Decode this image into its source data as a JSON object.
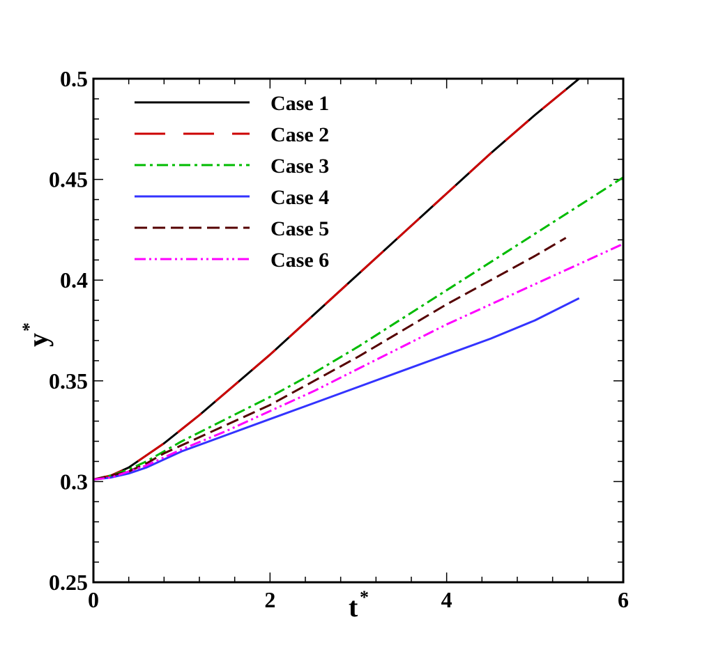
{
  "chart_data": {
    "type": "line",
    "title": "",
    "xlabel": "t",
    "xlabel_sup": "*",
    "ylabel": "y",
    "ylabel_sup": "*",
    "xlim": [
      0,
      6
    ],
    "ylim": [
      0.25,
      0.5
    ],
    "xticks": [
      0,
      2,
      4,
      6
    ],
    "xtick_labels": [
      "0",
      "2",
      "4",
      "6"
    ],
    "yticks": [
      0.25,
      0.3,
      0.35,
      0.4,
      0.45,
      0.5
    ],
    "ytick_labels": [
      "0.25",
      "0.3",
      "0.35",
      "0.4",
      "0.45",
      "0.5"
    ],
    "grid": false,
    "legend": {
      "position": "top-left"
    },
    "series": [
      {
        "name": "Case 1",
        "color": "#000000",
        "dash": "solid",
        "x": [
          0,
          0.2,
          0.4,
          0.6,
          0.8,
          1.0,
          1.2,
          1.6,
          2.0,
          2.5,
          3.0,
          3.5,
          4.0,
          4.5,
          5.0,
          5.5
        ],
        "y": [
          0.301,
          0.303,
          0.307,
          0.313,
          0.319,
          0.326,
          0.333,
          0.348,
          0.363,
          0.383,
          0.403,
          0.423,
          0.443,
          0.463,
          0.482,
          0.5
        ]
      },
      {
        "name": "Case 2",
        "color": "#cc0000",
        "dash": "longdash",
        "x": [
          0,
          0.2,
          0.4,
          0.6,
          0.8,
          1.0,
          1.2,
          1.6,
          2.0,
          2.5,
          3.0,
          3.5,
          4.0,
          4.5,
          5.0,
          5.5
        ],
        "y": [
          0.301,
          0.303,
          0.307,
          0.313,
          0.319,
          0.326,
          0.333,
          0.348,
          0.363,
          0.383,
          0.403,
          0.423,
          0.443,
          0.463,
          0.482,
          0.5
        ]
      },
      {
        "name": "Case 3",
        "color": "#00bb00",
        "dash": "dashdot",
        "x": [
          0,
          0.2,
          0.4,
          0.6,
          0.8,
          1.0,
          1.5,
          2.0,
          2.5,
          3.0,
          3.5,
          4.0,
          4.5,
          5.0,
          5.5,
          6.0
        ],
        "y": [
          0.301,
          0.303,
          0.306,
          0.31,
          0.315,
          0.32,
          0.331,
          0.342,
          0.354,
          0.367,
          0.381,
          0.395,
          0.409,
          0.423,
          0.437,
          0.451
        ]
      },
      {
        "name": "Case 4",
        "color": "#3333ff",
        "dash": "solid",
        "x": [
          0,
          0.2,
          0.4,
          0.6,
          0.8,
          1.0,
          1.5,
          2.0,
          2.5,
          3.0,
          3.5,
          4.0,
          4.5,
          5.0,
          5.5
        ],
        "y": [
          0.301,
          0.302,
          0.304,
          0.307,
          0.311,
          0.315,
          0.323,
          0.331,
          0.339,
          0.347,
          0.355,
          0.363,
          0.371,
          0.38,
          0.391
        ]
      },
      {
        "name": "Case 5",
        "color": "#550000",
        "dash": "dash",
        "x": [
          0,
          0.2,
          0.4,
          0.6,
          0.8,
          1.0,
          1.5,
          2.0,
          2.5,
          3.0,
          3.5,
          4.0,
          4.5,
          5.0,
          5.35
        ],
        "y": [
          0.301,
          0.303,
          0.305,
          0.309,
          0.314,
          0.318,
          0.328,
          0.338,
          0.35,
          0.362,
          0.375,
          0.388,
          0.4,
          0.412,
          0.421
        ]
      },
      {
        "name": "Case 6",
        "color": "#ff00ff",
        "dash": "dashdotdot",
        "x": [
          0,
          0.2,
          0.4,
          0.6,
          0.8,
          1.0,
          1.5,
          2.0,
          2.5,
          3.0,
          3.5,
          4.0,
          4.5,
          5.0,
          5.5,
          6.0
        ],
        "y": [
          0.301,
          0.302,
          0.305,
          0.308,
          0.312,
          0.316,
          0.325,
          0.335,
          0.345,
          0.356,
          0.367,
          0.378,
          0.388,
          0.398,
          0.408,
          0.418
        ]
      }
    ]
  }
}
